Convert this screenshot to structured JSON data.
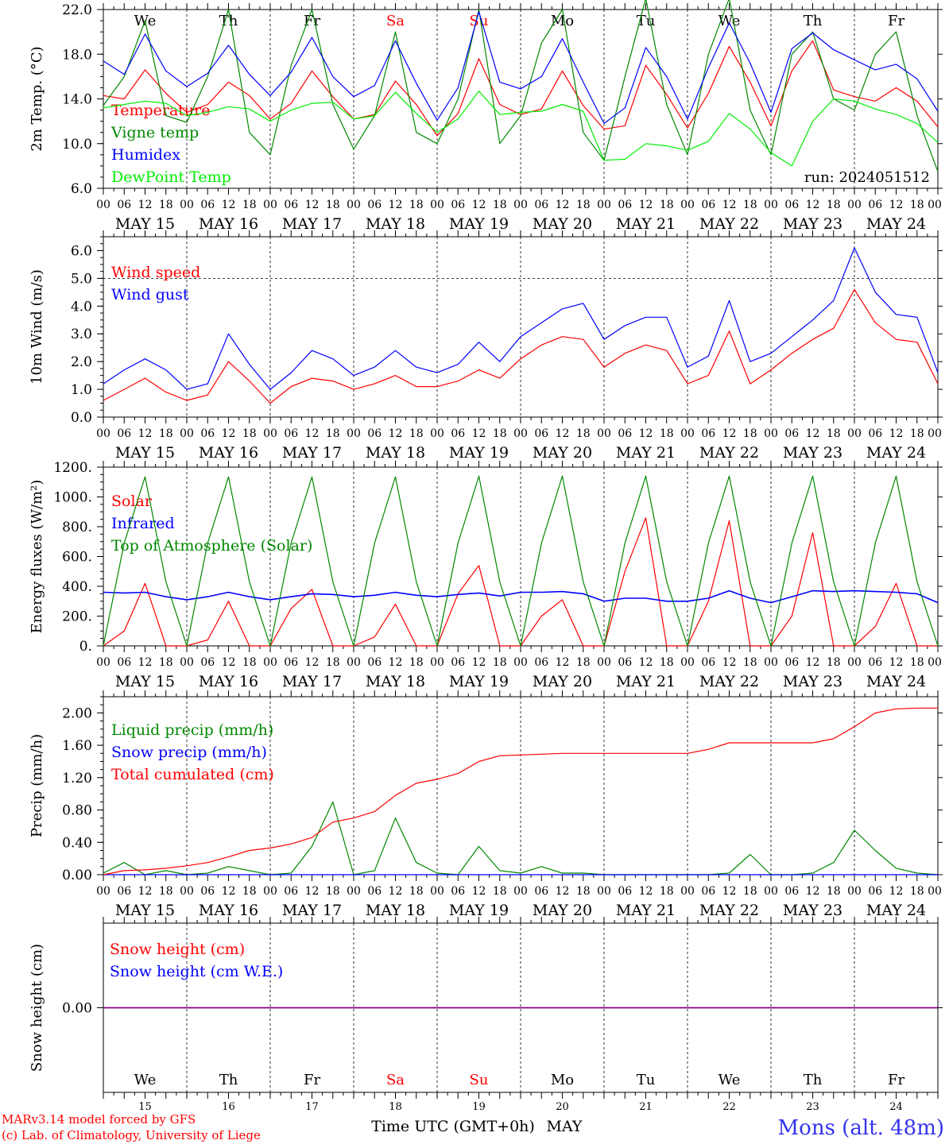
{
  "footer": {
    "model": "MARv3.14 model forced by GFS",
    "credit": "(c) Lab. of Climatology, University of Liege",
    "xlabel": "Time UTC (GMT+0h)",
    "month": "MAY",
    "station": "Mons (alt. 48m)"
  },
  "colors": {
    "red": "#ff0000",
    "green": "#008800",
    "blue": "#0000ff",
    "lightgreen": "#00ee00",
    "purple": "#880088"
  },
  "x_ticks": [
    "00",
    "06",
    "12",
    "18"
  ],
  "x_end_tick": "00",
  "dates": [
    "MAY 15",
    "MAY 16",
    "MAY 17",
    "MAY 18",
    "MAY 19",
    "MAY 20",
    "MAY 21",
    "MAY 22",
    "MAY 23",
    "MAY 24"
  ],
  "weekdays": [
    "We",
    "Th",
    "Fr",
    "Sa",
    "Su",
    "Mo",
    "Tu",
    "We",
    "Th",
    "Fr"
  ],
  "weekend_days": [
    "Sa",
    "Su"
  ],
  "day_numbers": [
    "15",
    "16",
    "17",
    "18",
    "19",
    "20",
    "21",
    "22",
    "23",
    "24"
  ],
  "chart_data": [
    {
      "type": "line",
      "ylabel": "2m Temp. (°C)",
      "ylim": [
        6,
        22
      ],
      "yticks": [
        "6.0",
        "10.0",
        "14.0",
        "18.0",
        "22.0"
      ],
      "annotation": "run: 2024051512",
      "hours": [
        0,
        6,
        12,
        18,
        24,
        30,
        36,
        42,
        48,
        54,
        60,
        66,
        72,
        78,
        84,
        90,
        96,
        102,
        108,
        114,
        120,
        126,
        132,
        138,
        144,
        150,
        156,
        162,
        168,
        174,
        180,
        186,
        192,
        198,
        204,
        210,
        216,
        222,
        228,
        234,
        240
      ],
      "series": [
        {
          "name": "Temperature",
          "color": "red",
          "values": [
            14.3,
            14.0,
            16.6,
            14.5,
            12.8,
            13.5,
            15.5,
            14.3,
            12.2,
            13.6,
            16.5,
            14.2,
            12.2,
            12.6,
            15.6,
            13.5,
            10.7,
            12.7,
            17.6,
            13.5,
            12.6,
            13.1,
            16.5,
            13.4,
            11.3,
            11.6,
            17.0,
            14.4,
            11.4,
            14.5,
            18.7,
            15.5,
            11.6,
            16.5,
            19.2,
            14.8,
            14.2,
            13.8,
            15.0,
            13.8,
            11.5
          ]
        },
        {
          "name": "Vigne temp",
          "color": "green",
          "values": [
            13.4,
            16.0,
            21.0,
            12.5,
            11.9,
            16.0,
            22.0,
            11.0,
            9.0,
            17.0,
            22.0,
            13.5,
            9.5,
            12.5,
            20.0,
            11.0,
            10.0,
            14.0,
            22.0,
            10.0,
            12.5,
            19.0,
            22.0,
            11.0,
            8.5,
            16.0,
            23.0,
            13.5,
            9.0,
            18.0,
            23.0,
            13.0,
            9.0,
            18.0,
            20.0,
            14.0,
            13.0,
            18.0,
            20.0,
            12.5,
            7.5
          ]
        },
        {
          "name": "Humidex",
          "color": "blue",
          "values": [
            17.4,
            16.2,
            19.8,
            16.5,
            15.1,
            16.3,
            18.8,
            16.2,
            14.3,
            16.4,
            19.5,
            16.0,
            14.2,
            15.2,
            19.2,
            15.4,
            12.1,
            15.0,
            21.8,
            15.5,
            14.9,
            16.0,
            19.4,
            15.5,
            11.8,
            13.2,
            18.6,
            16.0,
            12.2,
            16.8,
            20.8,
            17.2,
            12.8,
            18.5,
            19.9,
            18.4,
            17.5,
            16.6,
            17.1,
            15.8,
            12.9
          ]
        },
        {
          "name": "DewPoint Temp",
          "color": "lightgreen",
          "values": [
            13.2,
            13.5,
            13.8,
            13.6,
            12.5,
            12.8,
            13.3,
            13.1,
            12.0,
            13.0,
            13.6,
            13.7,
            12.2,
            12.5,
            14.6,
            12.7,
            11.0,
            12.2,
            14.7,
            12.6,
            12.8,
            12.9,
            13.5,
            12.9,
            8.5,
            8.6,
            10.0,
            9.8,
            9.4,
            10.2,
            12.7,
            11.3,
            9.2,
            8.0,
            12.0,
            14.0,
            13.8,
            13.1,
            12.6,
            11.8,
            10.1
          ]
        }
      ]
    },
    {
      "type": "line",
      "ylabel": "10m Wind (m/s)",
      "ylim": [
        0,
        6.5
      ],
      "yticks": [
        "0.0",
        "1.0",
        "2.0",
        "3.0",
        "4.0",
        "5.0",
        "6.0"
      ],
      "dashed_level": 5.0,
      "hours": [
        0,
        6,
        12,
        18,
        24,
        30,
        36,
        42,
        48,
        54,
        60,
        66,
        72,
        78,
        84,
        90,
        96,
        102,
        108,
        114,
        120,
        126,
        132,
        138,
        144,
        150,
        156,
        162,
        168,
        174,
        180,
        186,
        192,
        198,
        204,
        210,
        216,
        222,
        228,
        234,
        240
      ],
      "series": [
        {
          "name": "Wind speed",
          "color": "red",
          "values": [
            0.6,
            1.0,
            1.4,
            0.9,
            0.6,
            0.8,
            2.0,
            1.3,
            0.5,
            1.1,
            1.4,
            1.3,
            1.0,
            1.2,
            1.5,
            1.1,
            1.1,
            1.3,
            1.7,
            1.4,
            2.1,
            2.6,
            2.9,
            2.8,
            1.8,
            2.3,
            2.6,
            2.4,
            1.2,
            1.5,
            3.1,
            1.2,
            1.7,
            2.3,
            2.8,
            3.2,
            4.6,
            3.4,
            2.8,
            2.7,
            1.2
          ]
        },
        {
          "name": "Wind gust",
          "color": "blue",
          "values": [
            1.2,
            1.7,
            2.1,
            1.7,
            1.0,
            1.2,
            3.0,
            1.9,
            1.0,
            1.6,
            2.4,
            2.1,
            1.5,
            1.8,
            2.4,
            1.8,
            1.6,
            1.9,
            2.7,
            2.0,
            2.9,
            3.4,
            3.9,
            4.1,
            2.8,
            3.3,
            3.6,
            3.6,
            1.8,
            2.2,
            4.2,
            2.0,
            2.3,
            2.9,
            3.5,
            4.2,
            6.1,
            4.5,
            3.7,
            3.6,
            1.6
          ]
        }
      ]
    },
    {
      "type": "line",
      "ylabel": "Energy fluxes (W/m²)",
      "ylim": [
        0,
        1200
      ],
      "yticks": [
        "0.",
        "200.",
        "400.",
        "600.",
        "800.",
        "1000.",
        "1200."
      ],
      "hours": [
        0,
        6,
        12,
        18,
        24,
        30,
        36,
        42,
        48,
        54,
        60,
        66,
        72,
        78,
        84,
        90,
        96,
        102,
        108,
        114,
        120,
        126,
        132,
        138,
        144,
        150,
        156,
        162,
        168,
        174,
        180,
        186,
        192,
        198,
        204,
        210,
        216,
        222,
        228,
        234,
        240
      ],
      "series": [
        {
          "name": "Solar",
          "color": "red",
          "values": [
            0,
            100,
            420,
            0,
            0,
            40,
            300,
            0,
            0,
            250,
            380,
            0,
            0,
            60,
            280,
            0,
            0,
            350,
            540,
            0,
            0,
            200,
            310,
            0,
            0,
            500,
            860,
            0,
            0,
            300,
            840,
            0,
            0,
            200,
            760,
            0,
            0,
            130,
            420,
            0,
            0
          ]
        },
        {
          "name": "Infrared",
          "color": "blue",
          "values": [
            360,
            355,
            360,
            330,
            310,
            330,
            360,
            330,
            310,
            330,
            350,
            345,
            330,
            340,
            360,
            340,
            330,
            345,
            355,
            335,
            360,
            360,
            365,
            350,
            300,
            320,
            320,
            300,
            300,
            320,
            370,
            320,
            290,
            330,
            370,
            365,
            370,
            365,
            360,
            350,
            290
          ]
        },
        {
          "name": "Top of Atmosphere (Solar)",
          "color": "green",
          "values": [
            0,
            690,
            1135,
            430,
            0,
            690,
            1135,
            430,
            0,
            690,
            1135,
            430,
            0,
            690,
            1135,
            430,
            0,
            690,
            1140,
            430,
            0,
            690,
            1140,
            430,
            0,
            690,
            1140,
            430,
            0,
            690,
            1140,
            430,
            0,
            690,
            1140,
            430,
            0,
            690,
            1140,
            430,
            0
          ]
        }
      ]
    },
    {
      "type": "line",
      "ylabel": "Precip (mm/h)",
      "ylim": [
        0,
        2.2
      ],
      "yticks": [
        "0.00",
        "0.40",
        "0.80",
        "1.20",
        "1.60",
        "2.00"
      ],
      "hours": [
        0,
        6,
        12,
        18,
        24,
        30,
        36,
        42,
        48,
        54,
        60,
        66,
        72,
        78,
        84,
        90,
        96,
        102,
        108,
        114,
        120,
        126,
        132,
        138,
        144,
        150,
        156,
        162,
        168,
        174,
        180,
        186,
        192,
        198,
        204,
        210,
        216,
        222,
        228,
        234,
        240
      ],
      "series": [
        {
          "name": "Liquid precip (mm/h)",
          "color": "green",
          "values": [
            0.02,
            0.15,
            0.0,
            0.05,
            0.0,
            0.02,
            0.1,
            0.05,
            0.0,
            0.02,
            0.35,
            0.9,
            0.0,
            0.05,
            0.7,
            0.15,
            0.02,
            0.0,
            0.35,
            0.05,
            0.02,
            0.1,
            0.02,
            0.02,
            0.0,
            0.0,
            0.0,
            0.0,
            0.0,
            0.0,
            0.02,
            0.25,
            0.0,
            0.0,
            0.02,
            0.15,
            0.55,
            0.3,
            0.08,
            0.02,
            0.0
          ]
        },
        {
          "name": "Snow precip (mm/h)",
          "color": "blue",
          "values": [
            0,
            0,
            0,
            0,
            0,
            0,
            0,
            0,
            0,
            0,
            0,
            0,
            0,
            0,
            0,
            0,
            0,
            0,
            0,
            0,
            0,
            0,
            0,
            0,
            0,
            0,
            0,
            0,
            0,
            0,
            0,
            0,
            0,
            0,
            0,
            0,
            0,
            0,
            0,
            0,
            0
          ]
        },
        {
          "name": "Total cumulated (cm)",
          "color": "red",
          "values": [
            0.0,
            0.05,
            0.06,
            0.08,
            0.11,
            0.15,
            0.22,
            0.3,
            0.33,
            0.38,
            0.46,
            0.65,
            0.7,
            0.78,
            0.98,
            1.13,
            1.18,
            1.25,
            1.4,
            1.47,
            1.48,
            1.49,
            1.5,
            1.5,
            1.5,
            1.5,
            1.5,
            1.5,
            1.5,
            1.55,
            1.63,
            1.63,
            1.63,
            1.63,
            1.63,
            1.68,
            1.83,
            2.0,
            2.05,
            2.06,
            2.06
          ]
        }
      ]
    },
    {
      "type": "line",
      "ylabel": "Snow height (cm)",
      "ylim": [
        -1,
        1
      ],
      "yticks": [
        "0.00"
      ],
      "hours": [
        0,
        240
      ],
      "series": [
        {
          "name": "Snow height (cm)",
          "color": "red",
          "values": [
            0,
            0
          ]
        },
        {
          "name": "Snow height (cm W.E.)",
          "color": "blue",
          "values": [
            0,
            0
          ]
        }
      ]
    }
  ]
}
